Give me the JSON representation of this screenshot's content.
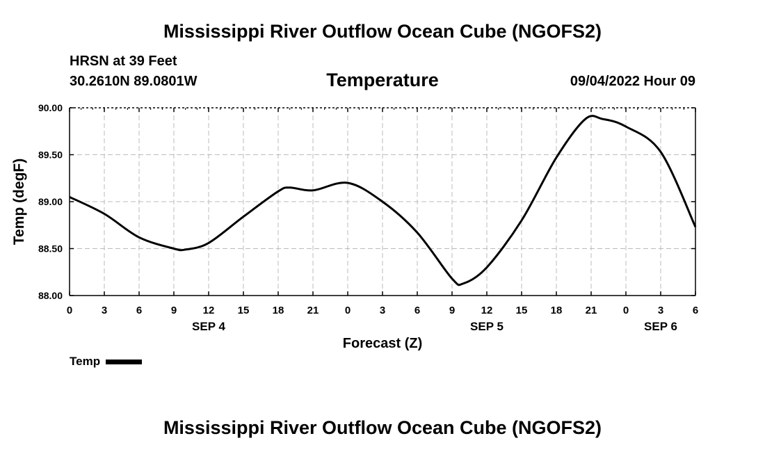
{
  "header": {
    "title": "Mississippi River Outflow Ocean Cube (NGOFS2)",
    "station": "HRSN at 39 Feet",
    "coords": "30.2610N  89.0801W",
    "variable": "Temperature",
    "datetime": "09/04/2022 Hour 09"
  },
  "footer": {
    "title": "Mississippi River Outflow Ocean Cube (NGOFS2)"
  },
  "legend": {
    "label": "Temp"
  },
  "chart_data": {
    "type": "line",
    "title": "Temperature",
    "xlabel": "Forecast (Z)",
    "ylabel": "Temp (degF)",
    "ylim": [
      88.0,
      90.0
    ],
    "xlim": [
      0,
      54
    ],
    "yticks": [
      "88.00",
      "88.50",
      "89.00",
      "89.50",
      "90.00"
    ],
    "ytick_values": [
      88.0,
      88.5,
      89.0,
      89.5,
      90.0
    ],
    "xticks": [
      "0",
      "3",
      "6",
      "9",
      "12",
      "15",
      "18",
      "21",
      "0",
      "3",
      "6",
      "9",
      "12",
      "15",
      "18",
      "21",
      "0",
      "3",
      "6"
    ],
    "date_labels": [
      {
        "label": "SEP 4",
        "hour": 12
      },
      {
        "label": "SEP 5",
        "hour": 36
      },
      {
        "label": "SEP 6",
        "hour": 51
      }
    ],
    "grid": true,
    "series": [
      {
        "name": "Temp",
        "x": [
          0,
          3,
          6,
          9,
          10,
          12,
          15,
          18,
          19,
          21,
          24,
          27,
          30,
          33,
          34,
          36,
          39,
          42,
          44.5,
          46,
          48,
          51,
          54
        ],
        "y": [
          89.05,
          88.87,
          88.62,
          88.5,
          88.49,
          88.56,
          88.84,
          89.11,
          89.15,
          89.12,
          89.2,
          89.0,
          88.67,
          88.18,
          88.13,
          88.3,
          88.8,
          89.47,
          89.88,
          89.88,
          89.8,
          89.53,
          88.73
        ]
      }
    ]
  }
}
